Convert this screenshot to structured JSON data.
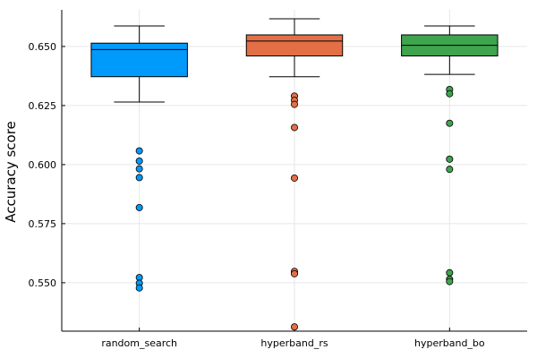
{
  "chart_data": {
    "type": "box",
    "title": "",
    "xlabel": "",
    "ylabel": "Accuracy score",
    "ylim": [
      0.5295,
      0.6655
    ],
    "yticks": [
      0.55,
      0.575,
      0.6,
      0.625,
      0.65
    ],
    "ytick_labels": [
      "0.550",
      "0.575",
      "0.600",
      "0.625",
      "0.650"
    ],
    "grid": true,
    "legend": "none",
    "categories": [
      "random_search",
      "hyperband_rs",
      "hyperband_bo"
    ],
    "series": [
      {
        "category": "random_search",
        "color": "#009AFA",
        "whisker_low": 0.6265,
        "q1": 0.6372,
        "median": 0.6487,
        "q3": 0.6514,
        "whisker_high": 0.6587,
        "outliers": [
          0.6058,
          0.6015,
          0.5982,
          0.5945,
          0.5818,
          0.5522,
          0.5498,
          0.5478
        ]
      },
      {
        "category": "hyperband_rs",
        "color": "#E36F47",
        "whisker_low": 0.6372,
        "q1": 0.646,
        "median": 0.6523,
        "q3": 0.6549,
        "whisker_high": 0.6617,
        "outliers": [
          0.629,
          0.6272,
          0.6255,
          0.6157,
          0.5943,
          0.5548,
          0.5538,
          0.5313
        ]
      },
      {
        "category": "hyperband_bo",
        "color": "#3EA44E",
        "whisker_low": 0.6382,
        "q1": 0.646,
        "median": 0.6505,
        "q3": 0.6549,
        "whisker_high": 0.6587,
        "outliers": [
          0.6318,
          0.63,
          0.6175,
          0.6023,
          0.598,
          0.5542,
          0.5515,
          0.5505
        ]
      }
    ]
  }
}
